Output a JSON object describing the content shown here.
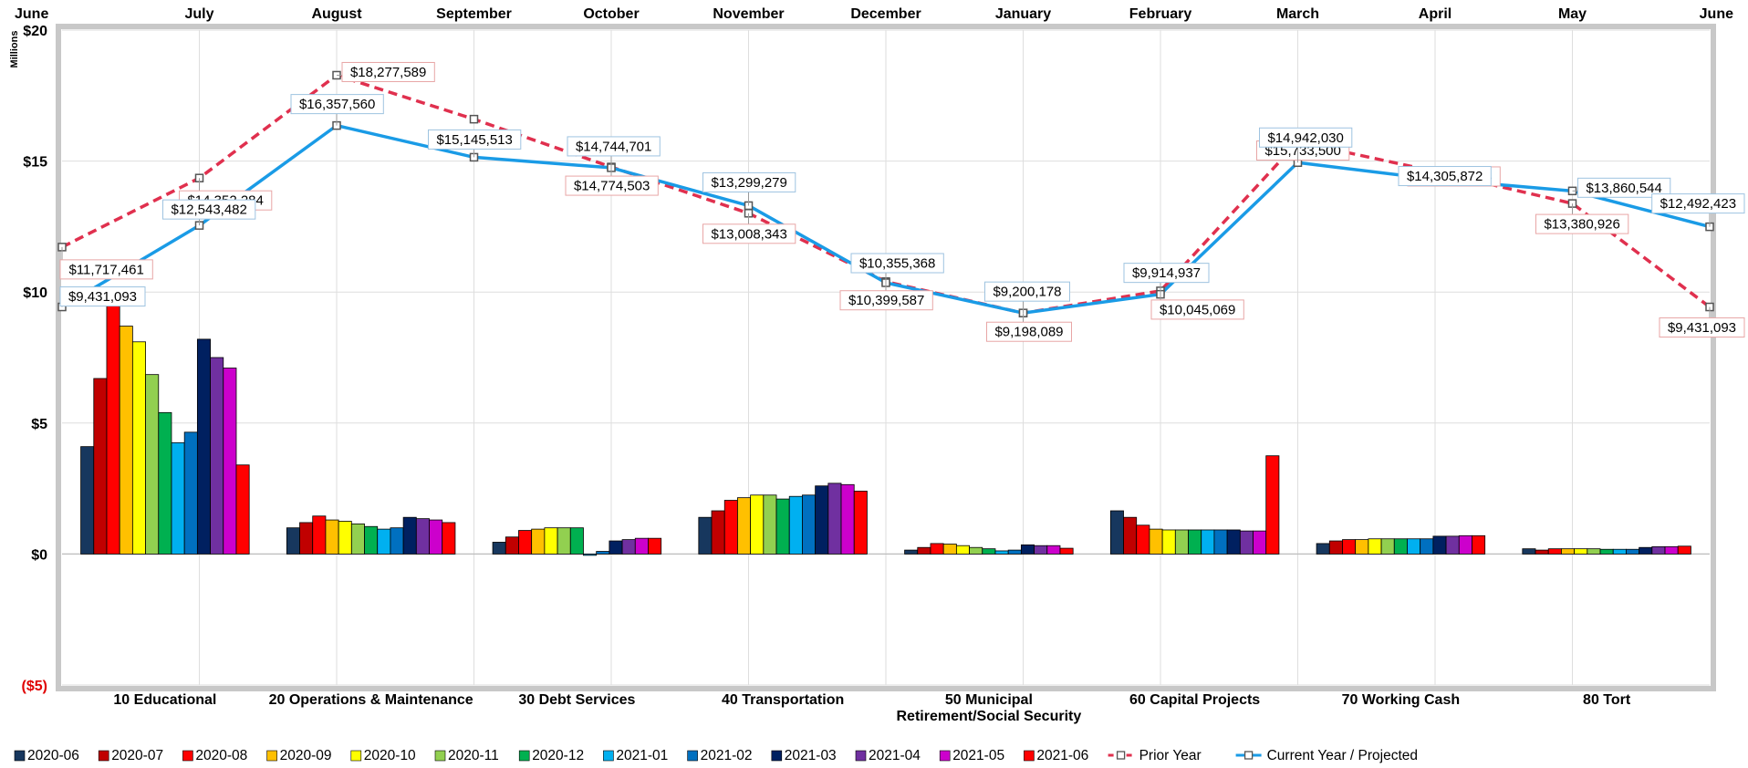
{
  "chart_data": {
    "type": "bar",
    "units_label": "Millions",
    "ylim": [
      -5,
      20
    ],
    "yticks": [
      {
        "value": 20,
        "label": "$20"
      },
      {
        "value": 15,
        "label": "$15"
      },
      {
        "value": 10,
        "label": "$10"
      },
      {
        "value": 5,
        "label": "$5"
      },
      {
        "value": 0,
        "label": "$0"
      },
      {
        "value": -5,
        "label": "($5)"
      }
    ],
    "negative_tick_color": "#e00000",
    "months": [
      "June",
      "July",
      "August",
      "September",
      "October",
      "November",
      "December",
      "January",
      "February",
      "March",
      "April",
      "May",
      "June"
    ],
    "categories": [
      "10 Educational",
      "20 Operations & Maintenance",
      "30 Debt Services",
      "40 Transportation",
      "50 Municipal\nRetirement/Social Security",
      "60 Capital Projects",
      "70 Working Cash",
      "80 Tort"
    ],
    "bar_series": [
      {
        "name": "2020-06",
        "color": "#17375e",
        "values": [
          4.1,
          1.0,
          0.45,
          1.4,
          0.15,
          1.65,
          0.4,
          0.2
        ]
      },
      {
        "name": "2020-07",
        "color": "#c00000",
        "values": [
          6.7,
          1.2,
          0.65,
          1.65,
          0.25,
          1.4,
          0.5,
          0.15
        ]
      },
      {
        "name": "2020-08",
        "color": "#ff0000",
        "values": [
          9.8,
          1.45,
          0.9,
          2.05,
          0.4,
          1.1,
          0.55,
          0.2
        ]
      },
      {
        "name": "2020-09",
        "color": "#ffc000",
        "values": [
          8.7,
          1.3,
          0.95,
          2.15,
          0.38,
          0.95,
          0.55,
          0.2
        ]
      },
      {
        "name": "2020-10",
        "color": "#ffff00",
        "values": [
          8.1,
          1.25,
          1.0,
          2.25,
          0.32,
          0.92,
          0.58,
          0.2
        ]
      },
      {
        "name": "2020-11",
        "color": "#92d050",
        "values": [
          6.85,
          1.15,
          1.0,
          2.25,
          0.25,
          0.92,
          0.58,
          0.2
        ]
      },
      {
        "name": "2020-12",
        "color": "#00b050",
        "values": [
          5.4,
          1.05,
          1.0,
          2.1,
          0.2,
          0.92,
          0.58,
          0.18
        ]
      },
      {
        "name": "2021-01",
        "color": "#00b0f0",
        "values": [
          4.25,
          0.95,
          -0.05,
          2.2,
          0.12,
          0.92,
          0.58,
          0.18
        ]
      },
      {
        "name": "2021-02",
        "color": "#0070c0",
        "values": [
          4.65,
          1.0,
          0.1,
          2.25,
          0.15,
          0.92,
          0.58,
          0.18
        ]
      },
      {
        "name": "2021-03",
        "color": "#002060",
        "values": [
          8.2,
          1.4,
          0.5,
          2.6,
          0.35,
          0.92,
          0.68,
          0.25
        ]
      },
      {
        "name": "2021-04",
        "color": "#7030a0",
        "values": [
          7.5,
          1.35,
          0.55,
          2.7,
          0.32,
          0.88,
          0.68,
          0.28
        ]
      },
      {
        "name": "2021-05",
        "color": "#cc00cc",
        "values": [
          7.1,
          1.3,
          0.6,
          2.65,
          0.32,
          0.88,
          0.7,
          0.28
        ]
      },
      {
        "name": "2021-06",
        "color": "#ff0000",
        "values": [
          3.4,
          1.2,
          0.6,
          2.4,
          0.22,
          3.75,
          0.7,
          0.3
        ]
      }
    ],
    "line_series": [
      {
        "name": "Prior Year",
        "color": "#e0304e",
        "dashed": true,
        "values": [
          11.717461,
          14.352284,
          18.277589,
          16.6,
          14.774503,
          13.008343,
          10.399587,
          9.198089,
          10.045069,
          15.7335,
          14.604538,
          13.380926,
          9.431093
        ],
        "labels": [
          "$11,717,461",
          "$14,352,284",
          "$18,277,589",
          "",
          "$14,774,503",
          "$13,008,343",
          "$10,399,587",
          "$9,198,089",
          "$10,045,069",
          "$15,733,500",
          "$14,604,538",
          "$13,380,926",
          "$9,431,093"
        ]
      },
      {
        "name": "Current Year / Projected",
        "color": "#1a9be6",
        "dashed": false,
        "values": [
          9.431093,
          12.543482,
          16.35756,
          15.145513,
          14.744701,
          13.299279,
          10.355368,
          9.200178,
          9.914937,
          14.94203,
          14.305872,
          13.860544,
          12.492423
        ],
        "labels": [
          "$9,431,093",
          "$12,543,482",
          "$16,357,560",
          "$15,145,513",
          "$14,744,701",
          "$13,299,279",
          "$10,355,368",
          "$9,200,178",
          "$9,914,937",
          "$14,942,030",
          "$14,305,872",
          "$13,860,544",
          "$12,492,423"
        ]
      }
    ],
    "grid": true,
    "legend_position": "bottom"
  }
}
